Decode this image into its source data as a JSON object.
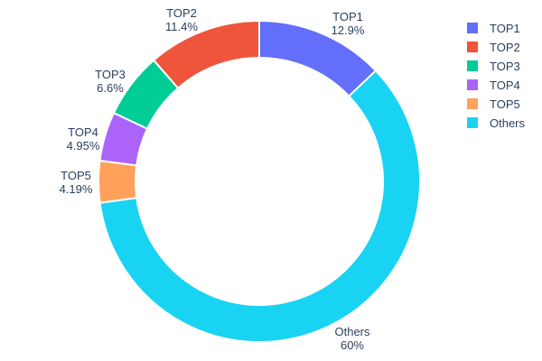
{
  "chart_data": {
    "type": "pie",
    "subtype": "donut",
    "title": "",
    "hole_ratio": 0.77,
    "background_color": "#ffffff",
    "text_color": "#2a3f5f",
    "legend_position": "top-right",
    "slices": [
      {
        "label": "TOP1",
        "value": 12.9,
        "percent_label": "12.9%",
        "color": "#636EFA"
      },
      {
        "label": "TOP2",
        "value": 11.4,
        "percent_label": "11.4%",
        "color": "#EF553B"
      },
      {
        "label": "TOP3",
        "value": 6.6,
        "percent_label": "6.6%",
        "color": "#00CC96"
      },
      {
        "label": "TOP4",
        "value": 4.95,
        "percent_label": "4.95%",
        "color": "#AB63FA"
      },
      {
        "label": "TOP5",
        "value": 4.19,
        "percent_label": "4.19%",
        "color": "#FFA15A"
      },
      {
        "label": "Others",
        "value": 60,
        "percent_label": "60%",
        "color": "#19D3F3"
      }
    ],
    "clockwise_order_from_top": [
      "TOP1",
      "Others",
      "TOP5",
      "TOP4",
      "TOP3",
      "TOP2"
    ]
  }
}
